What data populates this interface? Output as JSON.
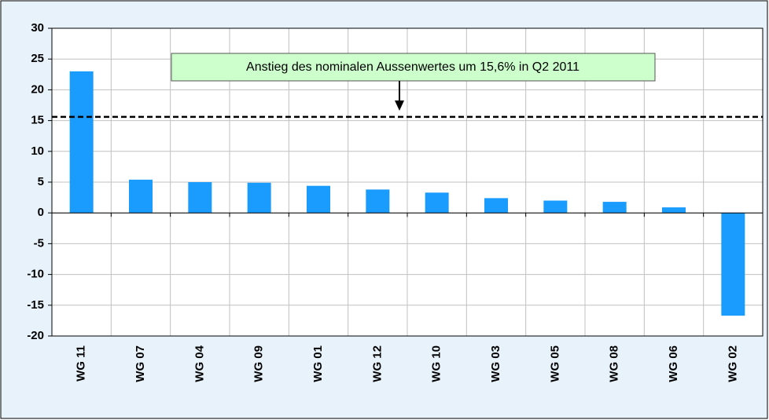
{
  "chart_data": {
    "type": "bar",
    "categories": [
      "WG 11",
      "WG 07",
      "WG 04",
      "WG 09",
      "WG 01",
      "WG 12",
      "WG 10",
      "WG 03",
      "WG 05",
      "WG 08",
      "WG 06",
      "WG 02"
    ],
    "values": [
      23,
      5.4,
      5.0,
      4.9,
      4.4,
      3.8,
      3.3,
      2.4,
      2.0,
      1.8,
      0.9,
      -16.7
    ],
    "color": "#1a9cff",
    "ylim": [
      -20,
      30
    ],
    "yticks": [
      -20,
      -15,
      -10,
      -5,
      0,
      5,
      10,
      15,
      20,
      25,
      30
    ],
    "grid": true,
    "reference_line": 15.6,
    "annotation": "Anstieg des nominalen Aussenwertes um 15,6% in Q2 2011"
  }
}
